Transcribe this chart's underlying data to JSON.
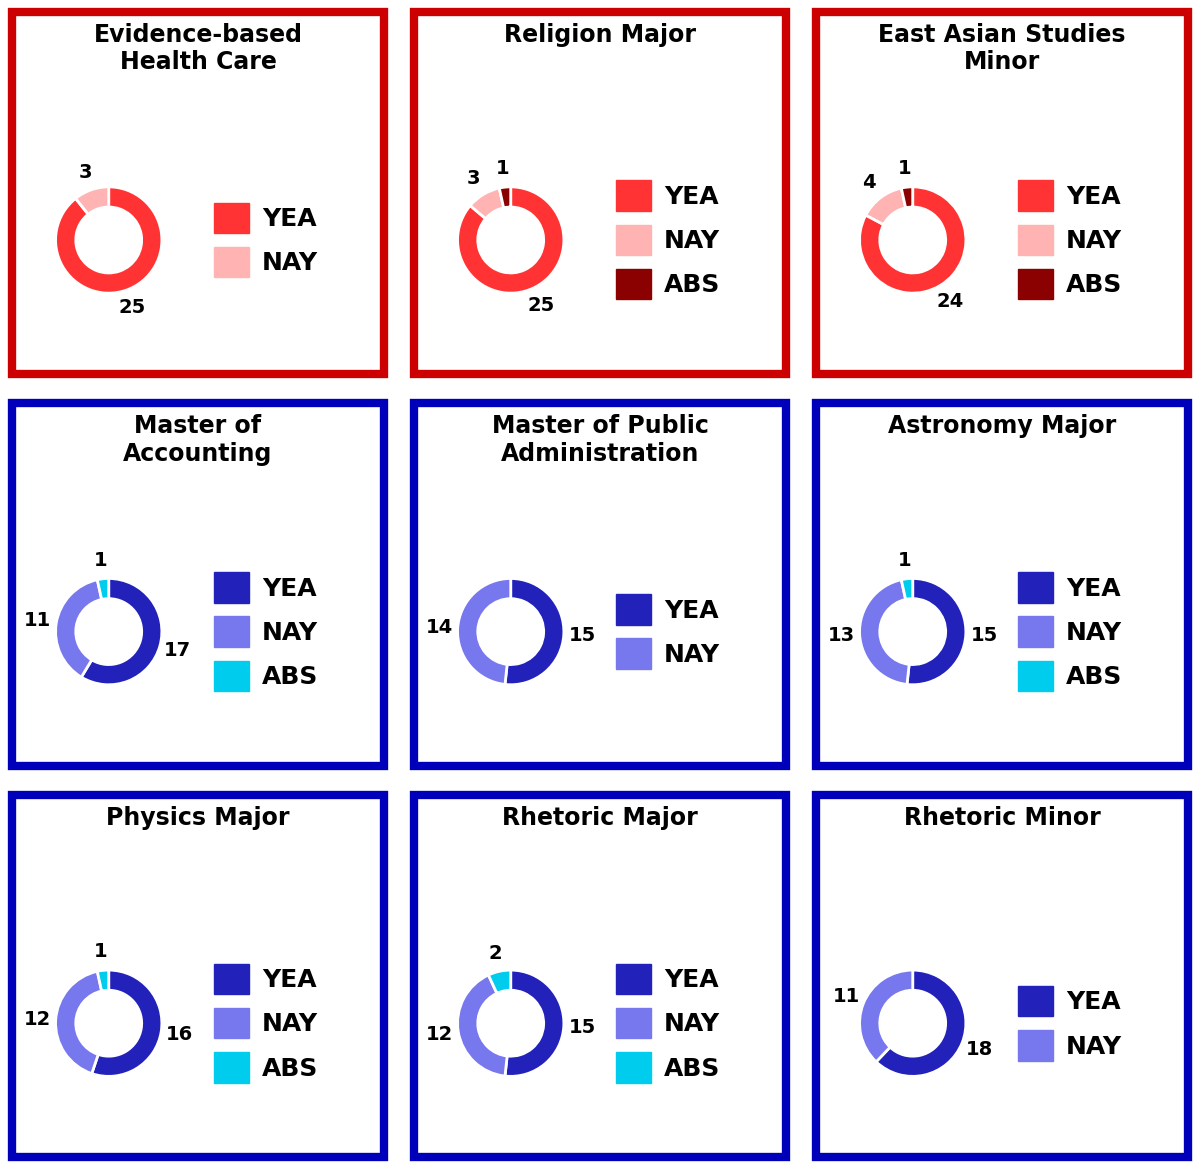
{
  "charts": [
    {
      "title": "Evidence-based\nHealth Care",
      "values": [
        25,
        3
      ],
      "labels": [
        "YEA",
        "NAY"
      ],
      "colors": [
        "#FF3333",
        "#FFB3B3"
      ],
      "border_color": "#CC0000",
      "theme": "red"
    },
    {
      "title": "Religion Major",
      "values": [
        25,
        3,
        1
      ],
      "labels": [
        "YEA",
        "NAY",
        "ABS"
      ],
      "colors": [
        "#FF3333",
        "#FFB3B3",
        "#8B0000"
      ],
      "border_color": "#CC0000",
      "theme": "red"
    },
    {
      "title": "East Asian Studies\nMinor",
      "values": [
        24,
        4,
        1
      ],
      "labels": [
        "YEA",
        "NAY",
        "ABS"
      ],
      "colors": [
        "#FF3333",
        "#FFB3B3",
        "#8B0000"
      ],
      "border_color": "#CC0000",
      "theme": "red"
    },
    {
      "title": "Master of\nAccounting",
      "values": [
        17,
        11,
        1
      ],
      "labels": [
        "YEA",
        "NAY",
        "ABS"
      ],
      "colors": [
        "#2222BB",
        "#7777EE",
        "#00CCEE"
      ],
      "border_color": "#0000BB",
      "theme": "blue"
    },
    {
      "title": "Master of Public\nAdministration",
      "values": [
        15,
        14
      ],
      "labels": [
        "YEA",
        "NAY"
      ],
      "colors": [
        "#2222BB",
        "#7777EE"
      ],
      "border_color": "#0000BB",
      "theme": "blue"
    },
    {
      "title": "Astronomy Major",
      "values": [
        15,
        13,
        1
      ],
      "labels": [
        "YEA",
        "NAY",
        "ABS"
      ],
      "colors": [
        "#2222BB",
        "#7777EE",
        "#00CCEE"
      ],
      "border_color": "#0000BB",
      "theme": "blue"
    },
    {
      "title": "Physics Major",
      "values": [
        16,
        12,
        1
      ],
      "labels": [
        "YEA",
        "NAY",
        "ABS"
      ],
      "colors": [
        "#2222BB",
        "#7777EE",
        "#00CCEE"
      ],
      "border_color": "#0000BB",
      "theme": "blue"
    },
    {
      "title": "Rhetoric Major",
      "values": [
        15,
        12,
        2
      ],
      "labels": [
        "YEA",
        "NAY",
        "ABS"
      ],
      "colors": [
        "#2222BB",
        "#7777EE",
        "#00CCEE"
      ],
      "border_color": "#0000BB",
      "theme": "blue"
    },
    {
      "title": "Rhetoric Minor",
      "values": [
        18,
        11
      ],
      "labels": [
        "YEA",
        "NAY"
      ],
      "colors": [
        "#2222BB",
        "#7777EE"
      ],
      "border_color": "#0000BB",
      "theme": "blue"
    }
  ],
  "bg_color": "#FFFFFF",
  "title_fontsize": 17,
  "legend_fontsize": 18,
  "number_fontsize": 14,
  "donut_width": 0.38,
  "border_lw": 6
}
